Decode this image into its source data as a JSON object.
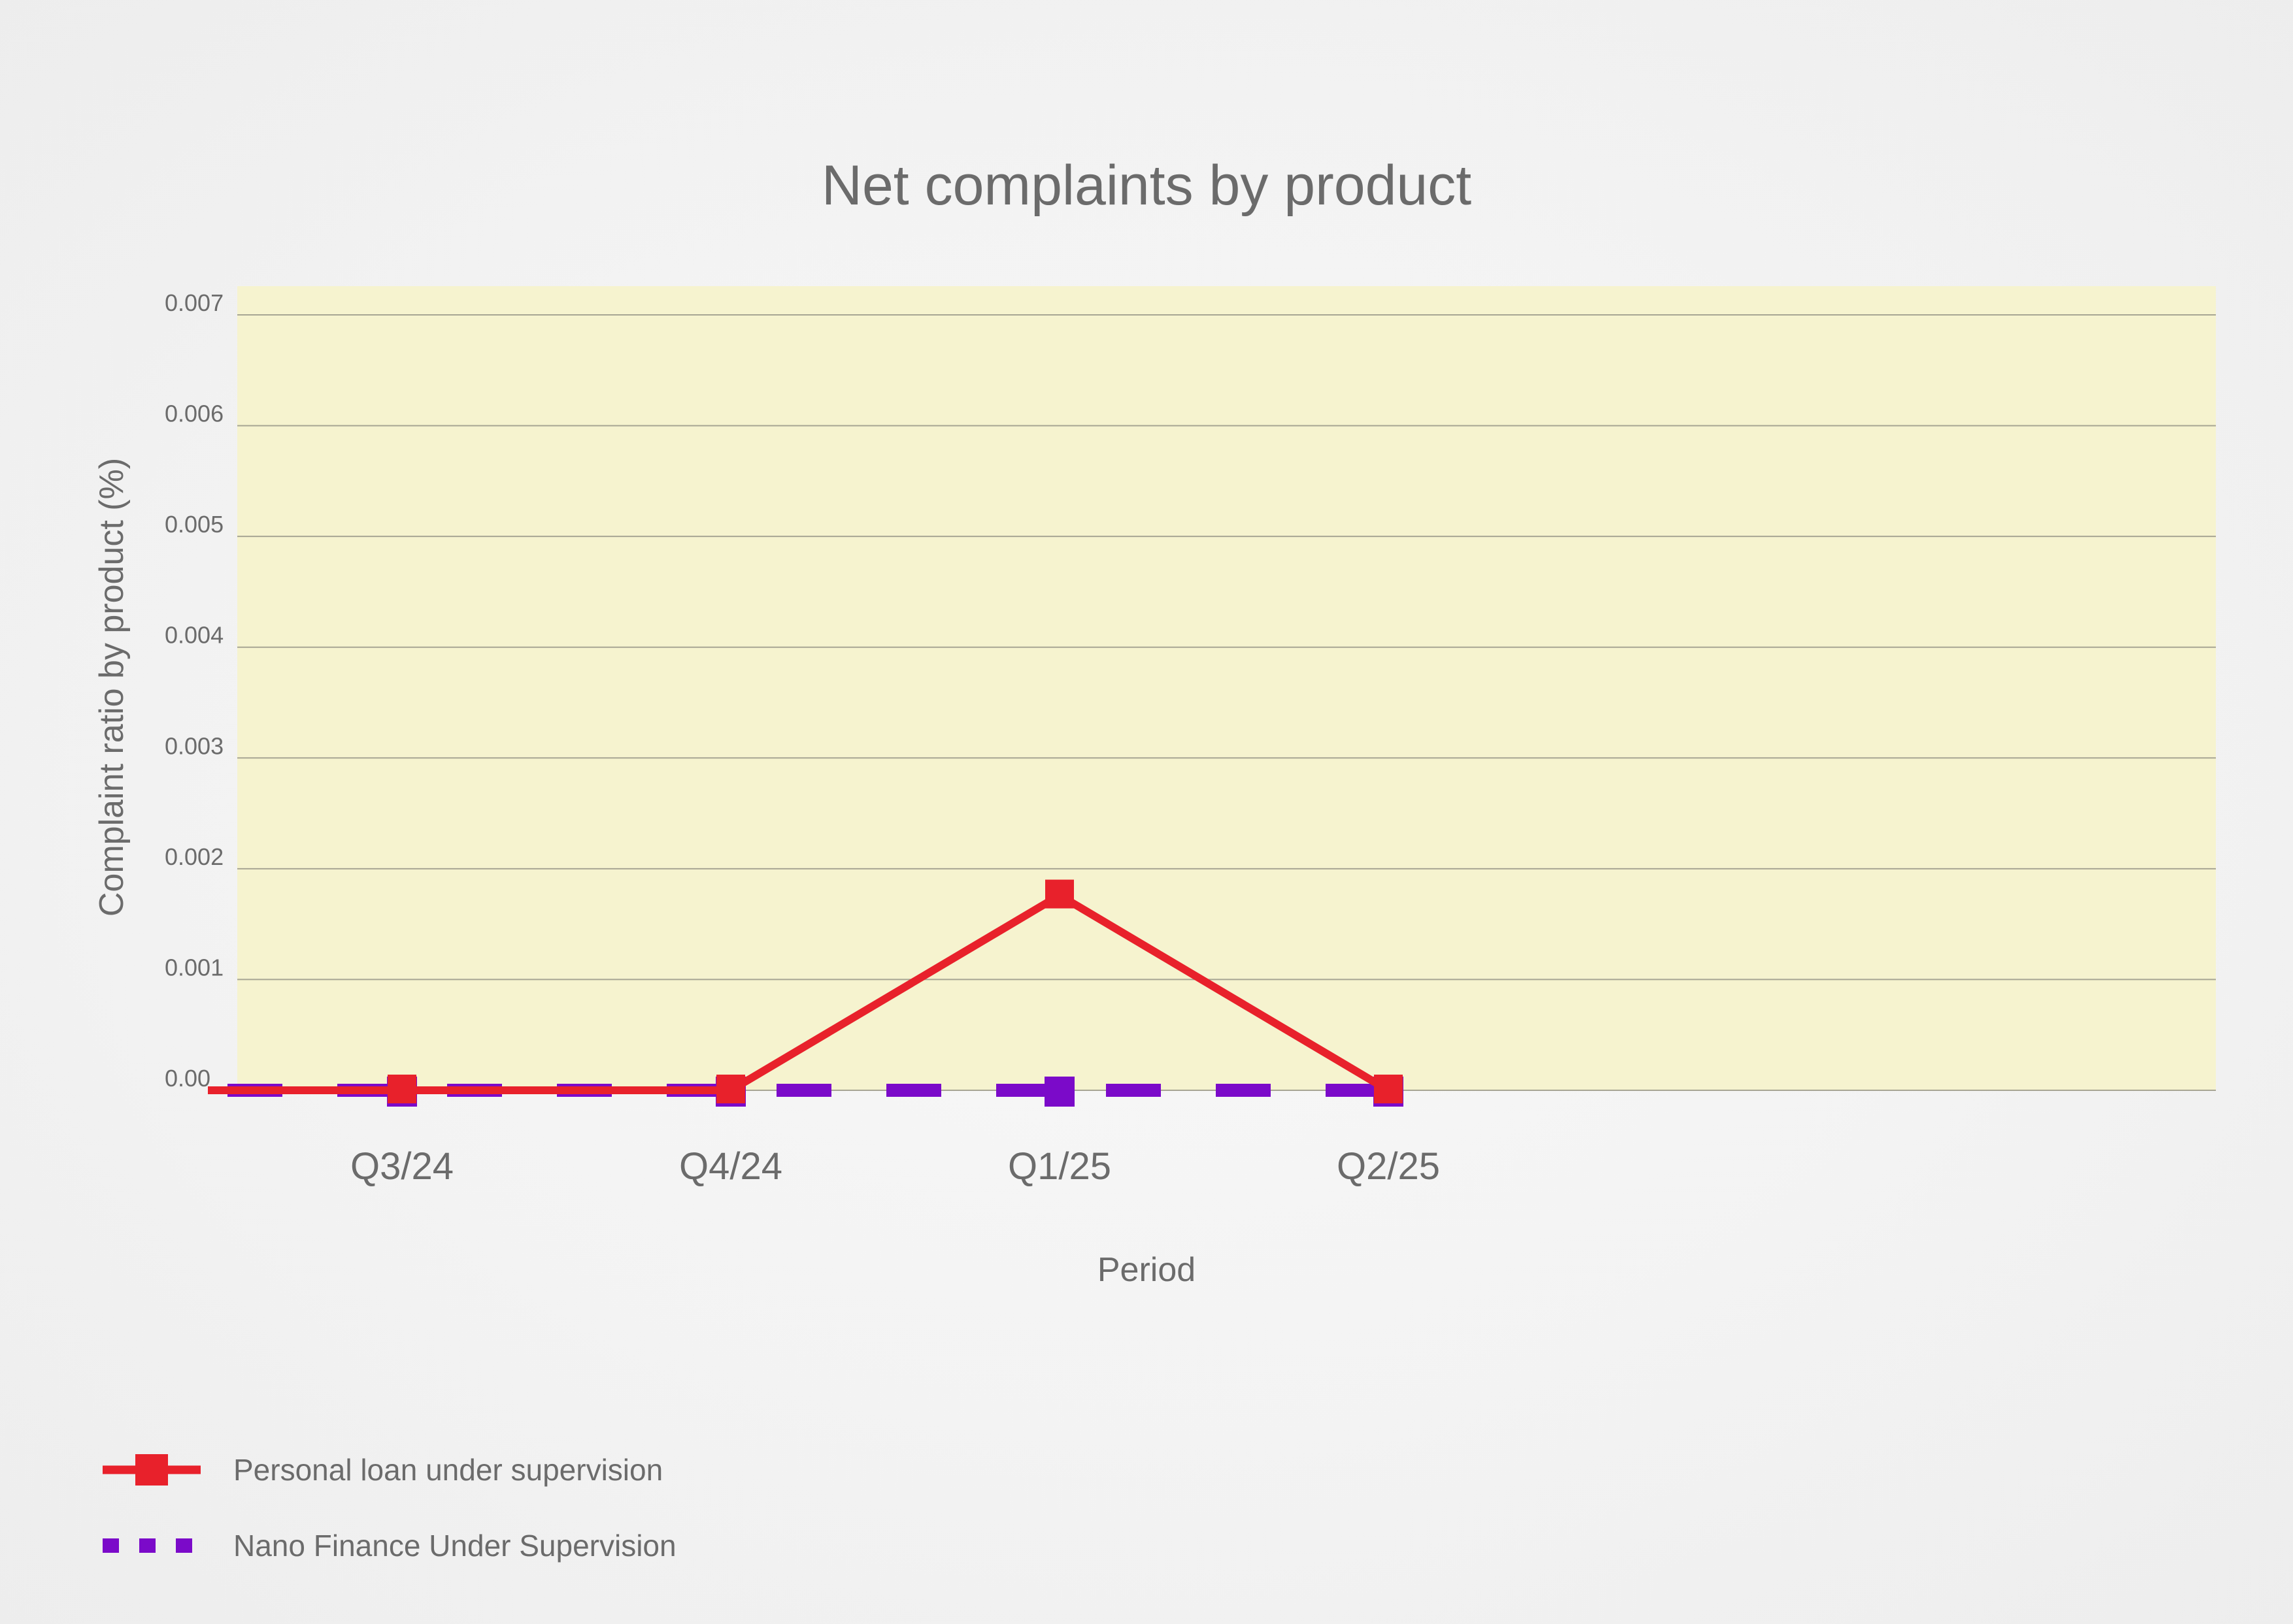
{
  "chart_data": {
    "type": "line",
    "title": "Net complaints by product",
    "xlabel": "Period",
    "ylabel": "Complaint ratio by product (%)",
    "categories": [
      "Q3/24",
      "Q4/24",
      "Q1/25",
      "Q2/25"
    ],
    "ylim": [
      0,
      0.007
    ],
    "yticks": [
      {
        "value": 0,
        "label": "0.00"
      },
      {
        "value": 0.001,
        "label": "0.001"
      },
      {
        "value": 0.002,
        "label": "0.002"
      },
      {
        "value": 0.003,
        "label": "0.003"
      },
      {
        "value": 0.004,
        "label": "0.004"
      },
      {
        "value": 0.005,
        "label": "0.005"
      },
      {
        "value": 0.006,
        "label": "0.006"
      },
      {
        "value": 0.007,
        "label": "0.007"
      }
    ],
    "grid": true,
    "legend_position": "bottom-left",
    "series": [
      {
        "name": "Personal loan under supervision",
        "values": [
          0,
          0,
          0.00176,
          0
        ],
        "color": "#e8212b",
        "style": "solid"
      },
      {
        "name": "Nano Finance Under Supervision",
        "values": [
          0,
          0,
          0,
          0
        ],
        "color": "#7b0ac9",
        "style": "dashed"
      }
    ]
  },
  "colors": {
    "plot_background": "#f6f3cf",
    "gridline": "#a7a593",
    "text": "#6b6b6b"
  }
}
